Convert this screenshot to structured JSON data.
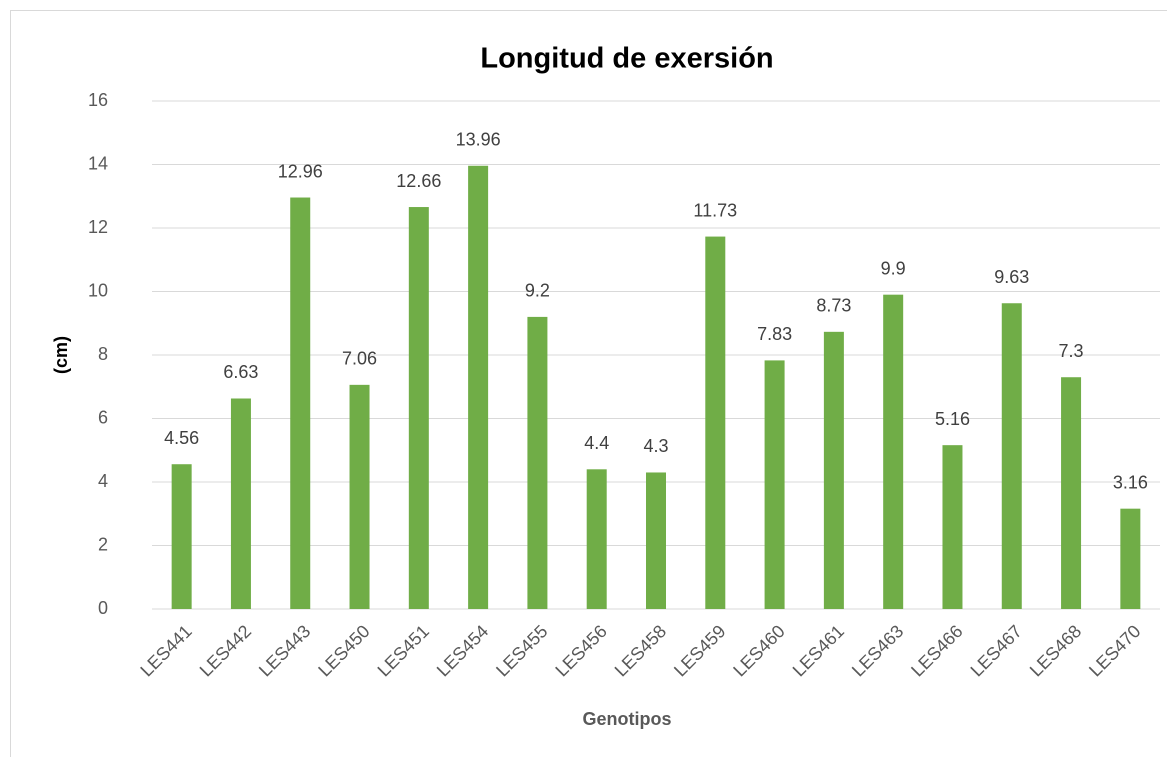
{
  "chart_data": {
    "type": "bar",
    "title": "Longitud de exersión",
    "x_label": "Genotipos",
    "y_label": "(cm)",
    "categories": [
      "LES441",
      "LES442",
      "LES443",
      "LES450",
      "LES451",
      "LES454",
      "LES455",
      "LES456",
      "LES458",
      "LES459",
      "LES460",
      "LES461",
      "LES463",
      "LES466",
      "LES467",
      "LES468",
      "LES470"
    ],
    "values": [
      4.56,
      6.63,
      12.96,
      7.06,
      12.66,
      13.96,
      9.2,
      4.4,
      4.3,
      11.73,
      7.83,
      8.73,
      9.9,
      5.16,
      9.63,
      7.3,
      3.16
    ],
    "color": "#70ad47",
    "ylim": [
      0,
      16
    ],
    "yticks": [
      0,
      2,
      4,
      6,
      8,
      10,
      12,
      14,
      16
    ],
    "grid": true
  }
}
